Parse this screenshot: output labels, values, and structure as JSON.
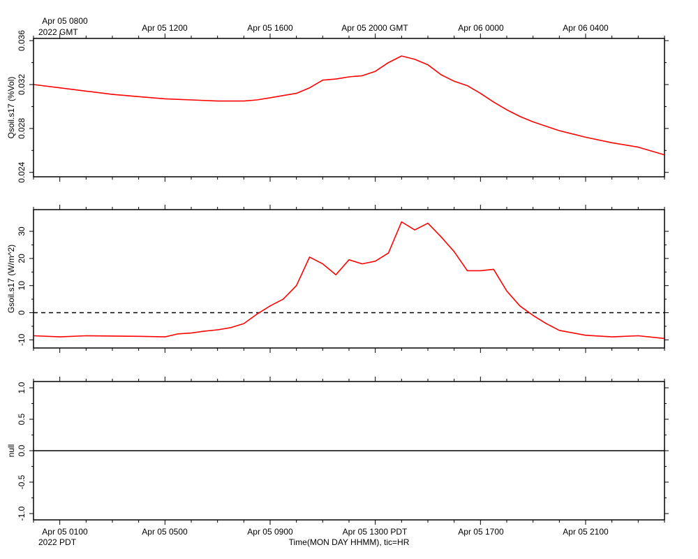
{
  "page": {
    "footer_label": "Time(MON DAY HHMM), tic=HR"
  },
  "top_axis": {
    "labels": [
      "Apr 05 0800",
      "Apr 05 1200",
      "Apr 05 1600",
      "Apr 05 2000 GMT",
      "Apr 06 0000",
      "Apr 06 0400"
    ],
    "sub_label": "2022 GMT"
  },
  "bottom_axis": {
    "labels": [
      "Apr 05 0100",
      "Apr 05 0500",
      "Apr 05 0900",
      "Apr 05 1300 PDT",
      "Apr 05 1700",
      "Apr 05 2100"
    ],
    "sub_label": "2022 PDT"
  },
  "colors": {
    "series": "#ff0000",
    "axis": "#000000",
    "zero_line": "#000000"
  },
  "chart_data": [
    {
      "type": "line",
      "ylabel": "Qsoil.s17 (%Vol)",
      "ylim": [
        0.0236,
        0.0362
      ],
      "yticks": [
        0.024,
        0.028,
        0.032,
        0.036
      ],
      "ytick_labels": [
        "0.024",
        "0.028",
        "0.032",
        "0.036"
      ],
      "xlim_hours_pdt": [
        0,
        24
      ],
      "grid": false,
      "series": [
        {
          "x": [
            0,
            1,
            2,
            3,
            4,
            5,
            6,
            7,
            7.5,
            8,
            8.5,
            9,
            9.5,
            10,
            10.5,
            11,
            11.5,
            12,
            12.5,
            13,
            13.5,
            14,
            14.5,
            15,
            15.5,
            16,
            16.5,
            17,
            17.5,
            18,
            18.5,
            19,
            19.5,
            20,
            20.5,
            21,
            22,
            23,
            24
          ],
          "y": [
            0.032,
            0.0317,
            0.0314,
            0.0311,
            0.0309,
            0.0307,
            0.0306,
            0.0305,
            0.0305,
            0.0305,
            0.0306,
            0.0308,
            0.031,
            0.0312,
            0.0317,
            0.0324,
            0.0325,
            0.0327,
            0.0328,
            0.0332,
            0.034,
            0.0346,
            0.0343,
            0.0338,
            0.0329,
            0.0323,
            0.0319,
            0.0312,
            0.0304,
            0.0297,
            0.0291,
            0.0286,
            0.0282,
            0.0278,
            0.0275,
            0.0272,
            0.0267,
            0.0263,
            0.0256
          ]
        }
      ]
    },
    {
      "type": "line",
      "ylabel": "Gsoil.s17 (W/m^2)",
      "ylim": [
        -13,
        38
      ],
      "yticks": [
        -10,
        0,
        10,
        20,
        30
      ],
      "ytick_labels": [
        "-10",
        "0",
        "10",
        "20",
        "30"
      ],
      "reference_line": 0,
      "xlim_hours_pdt": [
        0,
        24
      ],
      "grid": false,
      "series": [
        {
          "x": [
            0,
            1,
            2,
            3,
            4,
            5,
            5.5,
            6,
            6.5,
            7,
            7.5,
            8,
            8.5,
            9,
            9.5,
            10,
            10.5,
            11,
            11.5,
            12,
            12.5,
            13,
            13.5,
            14,
            14.5,
            15,
            15.5,
            16,
            16.5,
            17,
            17.5,
            18,
            18.5,
            19,
            19.5,
            20,
            21,
            22,
            23,
            24
          ],
          "y": [
            -8.5,
            -8.9,
            -8.5,
            -8.6,
            -8.7,
            -8.9,
            -7.8,
            -7.5,
            -6.8,
            -6.3,
            -5.5,
            -4.0,
            -0.5,
            2.5,
            5.0,
            10.0,
            20.5,
            18.0,
            14.0,
            19.5,
            18.0,
            19.0,
            22.0,
            33.5,
            30.5,
            33.0,
            28.0,
            22.5,
            15.5,
            15.5,
            16.0,
            8.0,
            2.5,
            -1.0,
            -4.0,
            -6.5,
            -8.3,
            -8.9,
            -8.5,
            -9.5
          ]
        }
      ]
    },
    {
      "type": "line",
      "ylabel": "null",
      "ylim": [
        -1.1,
        1.1
      ],
      "yticks": [
        -1,
        -0.5,
        0,
        0.5,
        1
      ],
      "ytick_labels": [
        "-1.0",
        "-0.5",
        "0.0",
        "0.5",
        "1.0"
      ],
      "xlim_hours_pdt": [
        0,
        24
      ],
      "grid": false,
      "series": [
        {
          "x": [
            0,
            24
          ],
          "y": [
            0,
            0
          ]
        }
      ]
    }
  ]
}
